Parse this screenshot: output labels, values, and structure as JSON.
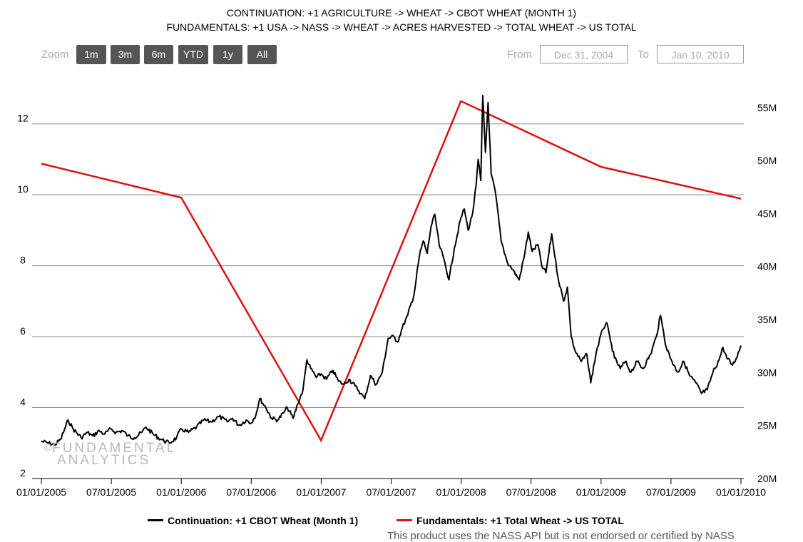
{
  "header": {
    "title_line1": "CONTINUATION: +1 AGRICULTURE -> WHEAT -> CBOT WHEAT (MONTH 1)",
    "title_line2": "FUNDAMENTALS: +1 USA -> NASS -> WHEAT -> ACRES HARVESTED -> TOTAL WHEAT -> US TOTAL"
  },
  "toolbar": {
    "zoom_label": "Zoom",
    "buttons": [
      "1m",
      "3m",
      "6m",
      "YTD",
      "1y",
      "All"
    ],
    "from_label": "From",
    "from_value": "Dec 31, 2004",
    "to_label": "To",
    "to_value": "Jan 10, 2010"
  },
  "watermark": {
    "copyright": "©",
    "line1": "FUNDAMENTAL",
    "line2": "ANALYTICS"
  },
  "legend": {
    "series1": "Continuation: +1 CBOT Wheat (Month 1)",
    "series2": "Fundamentals: +1 Total Wheat -> US TOTAL"
  },
  "disclaimer": "This product uses the NASS API but is not endorsed or certified by NASS",
  "colors": {
    "price_line": "#000000",
    "fundamental_line": "#dd1111",
    "grid": "#888888",
    "button_bg": "#555555"
  },
  "chart_data": {
    "type": "line",
    "x_axis": {
      "tick_labels": [
        "01/01/2005",
        "07/01/2005",
        "01/01/2006",
        "07/01/2006",
        "01/01/2007",
        "07/01/2007",
        "01/01/2008",
        "07/01/2008",
        "01/01/2009",
        "07/01/2009",
        "01/01/2010"
      ],
      "range": [
        "2005-01-01",
        "2010-01-01"
      ]
    },
    "y_left": {
      "ticks": [
        2,
        4,
        6,
        8,
        10,
        12
      ],
      "range": [
        2,
        13
      ]
    },
    "y_right": {
      "ticks": [
        "20M",
        "25M",
        "30M",
        "35M",
        "40M",
        "45M",
        "50M",
        "55M"
      ],
      "range": [
        20000000,
        56800000
      ]
    },
    "series": [
      {
        "name": "Continuation: +1 CBOT Wheat (Month 1)",
        "axis": "left",
        "points": [
          [
            "2005-01-01",
            3.05
          ],
          [
            "2005-01-20",
            3.0
          ],
          [
            "2005-02-05",
            2.95
          ],
          [
            "2005-02-20",
            3.1
          ],
          [
            "2005-03-05",
            3.45
          ],
          [
            "2005-03-12",
            3.65
          ],
          [
            "2005-03-25",
            3.4
          ],
          [
            "2005-04-15",
            3.15
          ],
          [
            "2005-05-01",
            3.3
          ],
          [
            "2005-05-15",
            3.2
          ],
          [
            "2005-06-01",
            3.35
          ],
          [
            "2005-06-15",
            3.25
          ],
          [
            "2005-07-01",
            3.4
          ],
          [
            "2005-07-15",
            3.3
          ],
          [
            "2005-08-01",
            3.35
          ],
          [
            "2005-08-15",
            3.2
          ],
          [
            "2005-09-01",
            3.15
          ],
          [
            "2005-09-20",
            3.3
          ],
          [
            "2005-10-01",
            3.45
          ],
          [
            "2005-10-20",
            3.25
          ],
          [
            "2005-11-10",
            3.1
          ],
          [
            "2005-12-01",
            3.0
          ],
          [
            "2005-12-20",
            3.15
          ],
          [
            "2006-01-01",
            3.4
          ],
          [
            "2006-01-20",
            3.3
          ],
          [
            "2006-02-10",
            3.45
          ],
          [
            "2006-03-01",
            3.65
          ],
          [
            "2006-03-20",
            3.6
          ],
          [
            "2006-04-10",
            3.75
          ],
          [
            "2006-05-01",
            3.6
          ],
          [
            "2006-05-15",
            3.7
          ],
          [
            "2006-06-01",
            3.5
          ],
          [
            "2006-06-20",
            3.65
          ],
          [
            "2006-07-01",
            3.55
          ],
          [
            "2006-07-15",
            3.8
          ],
          [
            "2006-07-25",
            4.25
          ],
          [
            "2006-08-10",
            4.0
          ],
          [
            "2006-08-25",
            3.7
          ],
          [
            "2006-09-10",
            3.65
          ],
          [
            "2006-09-25",
            3.85
          ],
          [
            "2006-10-05",
            4.0
          ],
          [
            "2006-10-20",
            3.7
          ],
          [
            "2006-11-01",
            4.1
          ],
          [
            "2006-11-15",
            4.5
          ],
          [
            "2006-11-25",
            5.35
          ],
          [
            "2006-12-05",
            5.1
          ],
          [
            "2006-12-20",
            4.85
          ],
          [
            "2007-01-01",
            4.95
          ],
          [
            "2007-01-15",
            4.8
          ],
          [
            "2007-02-01",
            5.05
          ],
          [
            "2007-02-15",
            4.75
          ],
          [
            "2007-03-01",
            4.65
          ],
          [
            "2007-03-15",
            4.8
          ],
          [
            "2007-04-01",
            4.6
          ],
          [
            "2007-04-15",
            4.4
          ],
          [
            "2007-04-25",
            4.25
          ],
          [
            "2007-05-10",
            4.9
          ],
          [
            "2007-05-25",
            4.65
          ],
          [
            "2007-06-10",
            5.0
          ],
          [
            "2007-06-25",
            5.95
          ],
          [
            "2007-07-10",
            6.0
          ],
          [
            "2007-07-20",
            5.85
          ],
          [
            "2007-08-01",
            6.25
          ],
          [
            "2007-08-15",
            6.6
          ],
          [
            "2007-09-01",
            7.2
          ],
          [
            "2007-09-15",
            8.3
          ],
          [
            "2007-09-25",
            8.7
          ],
          [
            "2007-10-05",
            8.35
          ],
          [
            "2007-10-15",
            9.1
          ],
          [
            "2007-10-25",
            9.45
          ],
          [
            "2007-11-05",
            8.6
          ],
          [
            "2007-11-20",
            8.1
          ],
          [
            "2007-12-01",
            7.6
          ],
          [
            "2007-12-15",
            8.5
          ],
          [
            "2008-01-01",
            9.35
          ],
          [
            "2008-01-10",
            9.6
          ],
          [
            "2008-01-20",
            9.0
          ],
          [
            "2008-02-01",
            9.5
          ],
          [
            "2008-02-10",
            10.3
          ],
          [
            "2008-02-15",
            11.0
          ],
          [
            "2008-02-22",
            10.4
          ],
          [
            "2008-02-27",
            12.8
          ],
          [
            "2008-03-05",
            11.2
          ],
          [
            "2008-03-12",
            12.6
          ],
          [
            "2008-03-20",
            10.6
          ],
          [
            "2008-04-01",
            10.0
          ],
          [
            "2008-04-15",
            8.7
          ],
          [
            "2008-05-01",
            8.1
          ],
          [
            "2008-05-15",
            7.9
          ],
          [
            "2008-06-01",
            7.6
          ],
          [
            "2008-06-15",
            8.3
          ],
          [
            "2008-06-25",
            8.95
          ],
          [
            "2008-07-05",
            8.4
          ],
          [
            "2008-07-20",
            8.6
          ],
          [
            "2008-07-30",
            8.0
          ],
          [
            "2008-08-10",
            7.8
          ],
          [
            "2008-08-25",
            8.9
          ],
          [
            "2008-09-10",
            7.7
          ],
          [
            "2008-09-25",
            7.0
          ],
          [
            "2008-10-05",
            7.4
          ],
          [
            "2008-10-15",
            6.0
          ],
          [
            "2008-10-25",
            5.6
          ],
          [
            "2008-11-10",
            5.3
          ],
          [
            "2008-11-25",
            5.5
          ],
          [
            "2008-12-05",
            4.7
          ],
          [
            "2008-12-20",
            5.6
          ],
          [
            "2009-01-05",
            6.2
          ],
          [
            "2009-01-15",
            6.4
          ],
          [
            "2009-01-25",
            5.9
          ],
          [
            "2009-02-05",
            5.4
          ],
          [
            "2009-02-20",
            5.1
          ],
          [
            "2009-03-05",
            5.3
          ],
          [
            "2009-03-20",
            5.0
          ],
          [
            "2009-04-05",
            5.3
          ],
          [
            "2009-04-20",
            5.1
          ],
          [
            "2009-05-10",
            5.5
          ],
          [
            "2009-05-25",
            6.0
          ],
          [
            "2009-06-05",
            6.6
          ],
          [
            "2009-06-10",
            6.3
          ],
          [
            "2009-06-20",
            5.7
          ],
          [
            "2009-07-05",
            5.3
          ],
          [
            "2009-07-20",
            5.0
          ],
          [
            "2009-08-05",
            5.3
          ],
          [
            "2009-08-20",
            4.9
          ],
          [
            "2009-09-05",
            4.7
          ],
          [
            "2009-09-20",
            4.4
          ],
          [
            "2009-10-05",
            4.5
          ],
          [
            "2009-10-20",
            5.0
          ],
          [
            "2009-11-05",
            5.35
          ],
          [
            "2009-11-15",
            5.7
          ],
          [
            "2009-11-25",
            5.4
          ],
          [
            "2009-12-10",
            5.2
          ],
          [
            "2009-12-20",
            5.4
          ],
          [
            "2010-01-01",
            5.75
          ]
        ]
      },
      {
        "name": "Fundamentals: +1 Total Wheat -> US TOTAL",
        "axis": "right",
        "points": [
          [
            "2005-01-01",
            49700000
          ],
          [
            "2006-01-01",
            46500000
          ],
          [
            "2007-01-01",
            23600000
          ],
          [
            "2008-01-01",
            55600000
          ],
          [
            "2009-01-01",
            49400000
          ],
          [
            "2010-01-01",
            46400000
          ]
        ]
      }
    ]
  }
}
